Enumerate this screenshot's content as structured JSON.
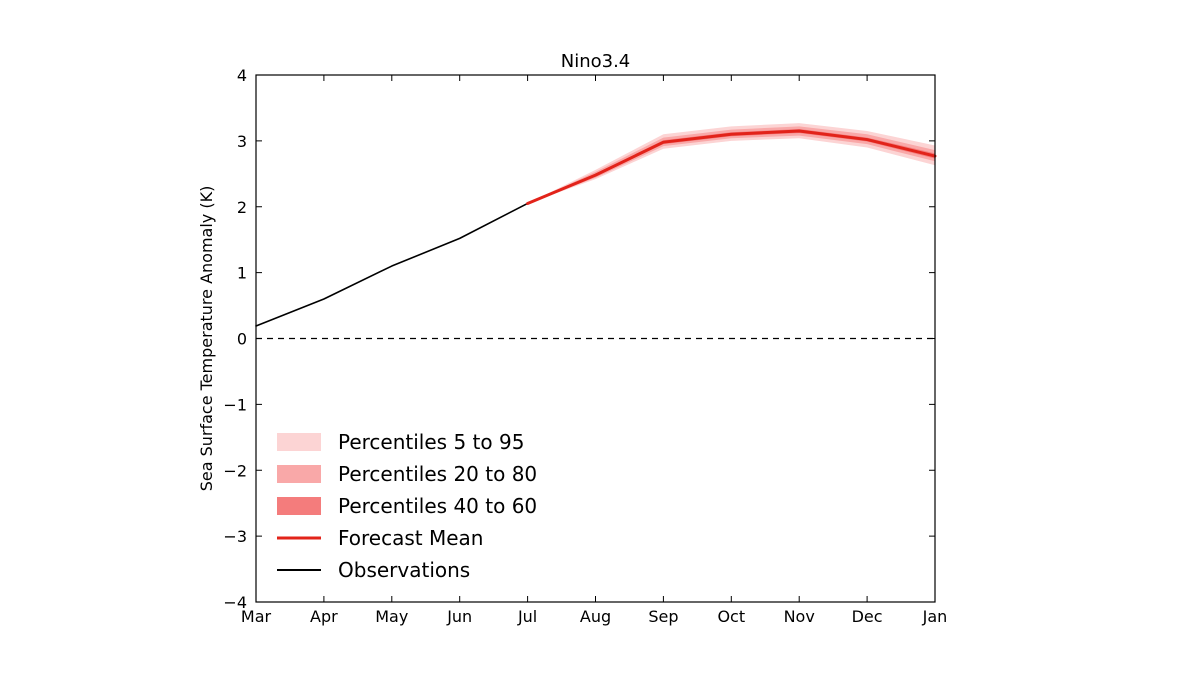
{
  "chart_data": {
    "type": "line",
    "title": "Nino3.4",
    "xlabel": "",
    "ylabel": "Sea Surface Temperature Anomaly (K)",
    "categories": [
      "Mar",
      "Apr",
      "May",
      "Jun",
      "Jul",
      "Aug",
      "Sep",
      "Oct",
      "Nov",
      "Dec",
      "Jan"
    ],
    "ylim": [
      -4,
      4
    ],
    "yticks": [
      "4",
      "3",
      "2",
      "1",
      "0",
      "−1",
      "−2",
      "−3",
      "−4"
    ],
    "ytick_values": [
      4,
      3,
      2,
      1,
      0,
      -1,
      -2,
      -3,
      -4
    ],
    "grid": false,
    "zero_line": "dashed",
    "legend_position": "lower-left",
    "series": [
      {
        "name": "Observations",
        "x": [
          "Mar",
          "Apr",
          "May",
          "Jun",
          "Jul"
        ],
        "values": [
          0.19,
          0.6,
          1.1,
          1.52,
          2.05
        ],
        "color": "#000000"
      },
      {
        "name": "Forecast Mean",
        "x": [
          "Jul",
          "Aug",
          "Sep",
          "Oct",
          "Nov",
          "Dec",
          "Jan"
        ],
        "values": [
          2.05,
          2.48,
          2.98,
          3.1,
          3.15,
          3.02,
          2.77
        ],
        "color": "#e2231a"
      }
    ],
    "bands": [
      {
        "name": "Percentiles 5 to 95",
        "x": [
          "Jul",
          "Aug",
          "Sep",
          "Oct",
          "Nov",
          "Dec",
          "Jan"
        ],
        "low": [
          2.05,
          2.42,
          2.88,
          3.0,
          3.04,
          2.9,
          2.63
        ],
        "high": [
          2.05,
          2.56,
          3.1,
          3.22,
          3.27,
          3.15,
          2.93
        ],
        "color": "#fcd4d4"
      },
      {
        "name": "Percentiles 20 to 80",
        "x": [
          "Jul",
          "Aug",
          "Sep",
          "Oct",
          "Nov",
          "Dec",
          "Jan"
        ],
        "low": [
          2.05,
          2.44,
          2.92,
          3.04,
          3.08,
          2.95,
          2.69
        ],
        "high": [
          2.05,
          2.53,
          3.05,
          3.17,
          3.22,
          3.1,
          2.86
        ],
        "color": "#f9a8a8"
      },
      {
        "name": "Percentiles 40 to 60",
        "x": [
          "Jul",
          "Aug",
          "Sep",
          "Oct",
          "Nov",
          "Dec",
          "Jan"
        ],
        "low": [
          2.05,
          2.46,
          2.95,
          3.07,
          3.12,
          2.99,
          2.73
        ],
        "high": [
          2.05,
          2.5,
          3.01,
          3.13,
          3.18,
          3.05,
          2.81
        ],
        "color": "#f47c7c"
      }
    ],
    "legend": [
      {
        "label": "Percentiles 5 to 95",
        "kind": "patch",
        "color": "#fcd4d4"
      },
      {
        "label": "Percentiles 20 to 80",
        "kind": "patch",
        "color": "#f9a8a8"
      },
      {
        "label": "Percentiles 40 to 60",
        "kind": "patch",
        "color": "#f47c7c"
      },
      {
        "label": "Forecast Mean",
        "kind": "line",
        "color": "#e2231a"
      },
      {
        "label": "Observations",
        "kind": "line",
        "color": "#000000"
      }
    ]
  }
}
